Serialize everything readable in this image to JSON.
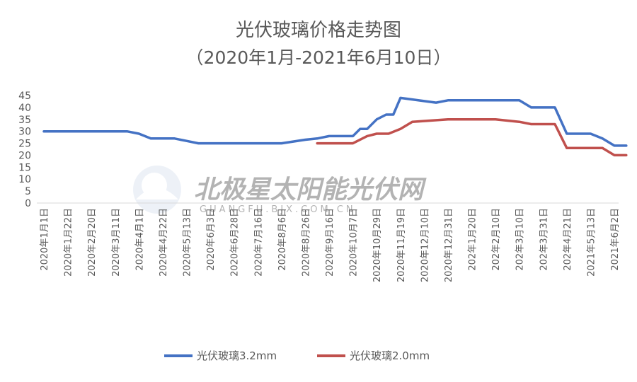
{
  "chart_data": {
    "type": "line",
    "title": "光伏玻璃价格走势图",
    "subtitle": "（2020年1月-2021年6月10日）",
    "xlabel": "",
    "ylabel": "",
    "ylim": [
      0,
      45
    ],
    "yticks": [
      0,
      5,
      10,
      15,
      20,
      25,
      30,
      35,
      40,
      45
    ],
    "grid": false,
    "legend_position": "bottom",
    "watermark": "北极星太阳能光伏网 GUANGFU.BJX.COM.CN",
    "categories": [
      "2020年1月1日",
      "2020年1月22日",
      "2020年2月20日",
      "2020年3月11日",
      "2020年4月1日",
      "2020年4月22日",
      "2020年5月13日",
      "2020年6月3日",
      "2020年6月28日",
      "2020年7月16日",
      "2020年8月6日",
      "2020年8月26日",
      "2020年9月16日",
      "2020年10月7日",
      "2020年10月29日",
      "2020年11月19日",
      "2020年12月10日",
      "2020年12月31日",
      "202年1月20日",
      "202年2月10日",
      "202年3月10日",
      "202年3月31日",
      "202年4月21日",
      "2021年5月13日",
      "2021年6月2日"
    ],
    "series": [
      {
        "name": "光伏玻璃3.2mm",
        "color": "#4472c4",
        "x": [
          0,
          3.5,
          4.0,
          4.5,
          5.5,
          6.0,
          6.5,
          9.5,
          10.0,
          11.0,
          11.5,
          12.0,
          13.0,
          13.3,
          13.6,
          14.0,
          14.4,
          14.7,
          15.0,
          16.5,
          17.0,
          20.0,
          20.5,
          21.5,
          22.0,
          23.0,
          23.5,
          24.0,
          24.5
        ],
        "values": [
          30,
          30,
          29,
          27,
          27,
          26,
          25,
          25,
          25,
          26.5,
          27,
          28,
          28,
          31,
          31,
          35,
          37,
          37,
          44,
          42,
          43,
          43,
          40,
          40,
          29,
          29,
          27,
          24,
          24
        ]
      },
      {
        "name": "光伏玻璃2.0mm",
        "color": "#c0504d",
        "x": [
          11.5,
          12.5,
          13.0,
          13.6,
          14.0,
          14.5,
          15.0,
          15.5,
          17.0,
          18.0,
          19.0,
          20.0,
          20.5,
          21.5,
          22.0,
          23.0,
          23.5,
          24.0,
          24.5
        ],
        "values": [
          25,
          25,
          25,
          28,
          29,
          29,
          31,
          34,
          35,
          35,
          35,
          34,
          33,
          33,
          23,
          23,
          23,
          20,
          20
        ]
      }
    ]
  }
}
